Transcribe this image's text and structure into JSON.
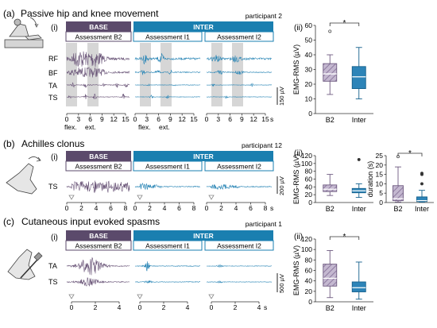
{
  "colors": {
    "base": "#5b4a6b",
    "inter": "#1a7fb0",
    "base_trace": "#6a5578",
    "inter_trace": "#2a86b6",
    "box_base_fill": "#b6a8c4",
    "box_inter_fill": "#2d84b8"
  },
  "icons": [
    "leg-hip-knee-icon",
    "foot-clonus-icon",
    "foot-reflex-hammer-icon",
    "stimulus-arrow-icon"
  ],
  "panel_a": {
    "letter": "(a)",
    "title": "Passive hip and knee movement",
    "participant": "participant 2",
    "sub_i": "(i)",
    "sub_ii": "(ii)",
    "base_header": "BASE",
    "inter_header": "INTER",
    "assess_b2": "Assessment B2",
    "assess_i1": "Assessment I1",
    "assess_i2": "Assessment I2",
    "muscles": [
      "RF",
      "BF",
      "TA",
      "TS"
    ],
    "scale": "150 µV",
    "x_ticks_b2": [
      "0",
      "3",
      "6",
      "9",
      "12",
      "15"
    ],
    "x_ticks_i": [
      "0",
      "3",
      "6",
      "9",
      "12",
      "15"
    ],
    "x_ticks_i2": [
      "0",
      "3",
      "6",
      "9",
      "12",
      "15",
      "s"
    ],
    "flex": "flex.",
    "ext": "ext."
  },
  "panel_b": {
    "letter": "(b)",
    "title": "Achilles clonus",
    "participant": "participant 12",
    "sub_i": "(i)",
    "sub_ii": "(ii)",
    "base_header": "BASE",
    "inter_header": "INTER",
    "assess_b2": "Assessment B2",
    "assess_i1": "Assessment I1",
    "assess_i2": "Assessment I2",
    "muscles": [
      "TS"
    ],
    "scale": "200 µV",
    "x_ticks_b2": [
      "0",
      "2",
      "4",
      "6",
      "8"
    ],
    "x_ticks_i": [
      "0",
      "2",
      "4",
      "6",
      "8"
    ],
    "x_ticks_i2": [
      "0",
      "2",
      "4",
      "6",
      "8",
      "s"
    ]
  },
  "panel_c": {
    "letter": "(c)",
    "title": "Cutaneous input evoked spasms",
    "participant": "participant 1",
    "sub_i": "(i)",
    "sub_ii": "(ii)",
    "base_header": "BASE",
    "inter_header": "INTER",
    "assess_b2": "Assessment B2",
    "assess_i1": "Assessment I1",
    "assess_i2": "Assessment I2",
    "muscles": [
      "TA",
      "TS"
    ],
    "scale": "500 µV",
    "x_ticks_b2": [
      "0",
      "2",
      "4"
    ],
    "x_ticks_i": [
      "0",
      "2",
      "4"
    ],
    "x_ticks_i2": [
      "0",
      "2",
      "4",
      "s"
    ]
  },
  "chart_data": [
    {
      "id": "a_ii",
      "type": "box",
      "ylabel": "EMG-RMS (µV)",
      "ylim": [
        0,
        60
      ],
      "yticks": [
        "0",
        "10",
        "20",
        "30",
        "40",
        "50",
        "60"
      ],
      "categories": [
        "B2",
        "Inter"
      ],
      "significance": "*",
      "boxes": [
        {
          "name": "B2",
          "q1": 22,
          "median": 27,
          "q3": 34,
          "whisker_low": 13,
          "whisker_high": 40,
          "outliers": [
            56
          ]
        },
        {
          "name": "Inter",
          "q1": 17,
          "median": 25,
          "q3": 32,
          "whisker_low": 10,
          "whisker_high": 45,
          "outliers": []
        }
      ]
    },
    {
      "id": "b_ii",
      "type": "box",
      "ylabel": "EMG-RMS (µV)",
      "ylim": [
        0,
        120
      ],
      "yticks": [
        "0",
        "20",
        "40",
        "60",
        "80",
        "100",
        "120"
      ],
      "categories": [
        "B2",
        "Inter"
      ],
      "significance": "",
      "boxes": [
        {
          "name": "B2",
          "q1": 28,
          "median": 34,
          "q3": 45,
          "whisker_low": 18,
          "whisker_high": 72,
          "outliers": []
        },
        {
          "name": "Inter",
          "q1": 25,
          "median": 30,
          "q3": 36,
          "whisker_low": 13,
          "whisker_high": 48,
          "outliers": [
            110
          ]
        }
      ]
    },
    {
      "id": "b_duration",
      "type": "box",
      "ylabel": "duration (s)",
      "ylim": [
        0,
        25
      ],
      "yticks": [
        "0",
        "5",
        "10",
        "15",
        "20",
        "25"
      ],
      "categories": [
        "B2",
        "Inter"
      ],
      "significance": "*",
      "boxes": [
        {
          "name": "B2",
          "q1": 1,
          "median": 2,
          "q3": 9,
          "whisker_low": 0.3,
          "whisker_high": 19,
          "outliers": [
            24.5
          ]
        },
        {
          "name": "Inter",
          "q1": 0.5,
          "median": 1,
          "q3": 3,
          "whisker_low": 0.2,
          "whisker_high": 6.5,
          "outliers": [
            10,
            15,
            15.6
          ]
        }
      ]
    },
    {
      "id": "c_ii",
      "type": "box",
      "ylabel": "EMG-RMS (µV)",
      "ylim": [
        0,
        120
      ],
      "yticks": [
        "0",
        "20",
        "40",
        "60",
        "80",
        "100",
        "120"
      ],
      "categories": [
        "B2",
        "Inter"
      ],
      "significance": "*",
      "boxes": [
        {
          "name": "B2",
          "q1": 30,
          "median": 45,
          "q3": 72,
          "whisker_low": 8,
          "whisker_high": 98,
          "outliers": []
        },
        {
          "name": "Inter",
          "q1": 19,
          "median": 27,
          "q3": 38,
          "whisker_low": 5,
          "whisker_high": 76,
          "outliers": []
        }
      ]
    }
  ]
}
